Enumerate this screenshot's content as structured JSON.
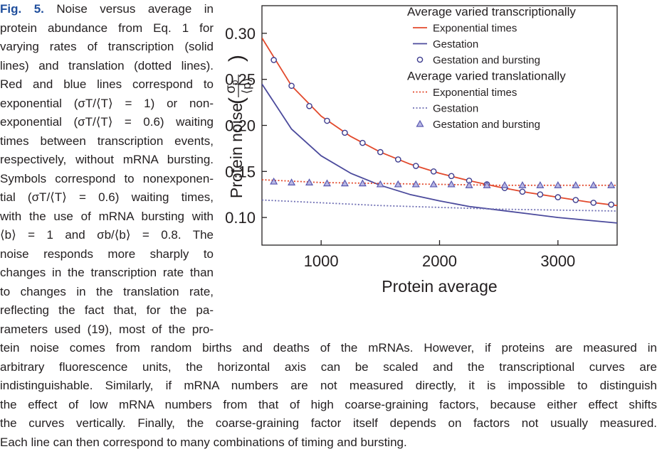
{
  "caption": {
    "label": "Fig. 5.",
    "left_lines": [
      "Noise versus average in",
      "protein abundance from Eq. 1 for",
      "varying rates of transcription (solid",
      "lines) and translation (dotted lines).",
      "Red and blue lines correspond to",
      "exponential (σT/⟨T⟩ = 1) or non-",
      "exponential (σT/⟨T⟩ = 0.6) waiting",
      "times between transcription events,",
      "respectively, without mRNA bursting.",
      "Symbols correspond to nonexponen-",
      "tial (σT/⟨T⟩ = 0.6) waiting times,",
      "with the use of mRNA bursting with",
      "⟨b⟩ = 1 and σb/⟨b⟩ = 0.8. The",
      "noise responds more sharply to",
      "changes in the transcription rate than",
      "to changes in the translation rate,",
      "reflecting the fact that, for the pa-",
      "rameters used (19), most of the pro-"
    ],
    "bottom_lines": [
      "tein noise comes from random births and deaths of the mRNAs. However, if proteins are measured in",
      "arbitrary fluorescence units, the horizontal axis can be scaled and the transcriptional curves are",
      "indistinguishable. Similarly, if mRNA numbers are not measured directly, it is impossible to distinguish",
      "the effect of low mRNA numbers from that of high coarse-graining factors, because either effect shifts",
      "the curves vertically. Finally, the coarse-graining factor itself depends on factors not usually measured.",
      "Each line can then correspond to many combinations of timing and bursting."
    ]
  },
  "chart_data": {
    "type": "line",
    "x_label": "Protein average",
    "y_label": "Protein noise",
    "y_label_fraction": {
      "numerator": "σ",
      "numerator_sub": "p",
      "denominator": "⟨p⟩"
    },
    "xlim": [
      500,
      3500
    ],
    "xticks": [
      1000,
      2000,
      3000
    ],
    "ylim": [
      0.07,
      0.33
    ],
    "yticks": [
      {
        "value": 0.1,
        "label": "0.10"
      },
      {
        "value": 0.15,
        "label": "0.15"
      },
      {
        "value": 0.2,
        "label": "0.20"
      },
      {
        "value": 0.25,
        "label": "0.25"
      },
      {
        "value": 0.3,
        "label": "0.30"
      }
    ],
    "legend_position": "upper right",
    "series_groups": [
      {
        "title": "Average varied transcriptionally",
        "series": [
          {
            "name": "Exponential times",
            "color": "#e2492c",
            "style": "solid",
            "x": [
              500,
              750,
              1000,
              1250,
              1500,
              1750,
              2000,
              2250,
              2500,
              2750,
              3000,
              3250,
              3500
            ],
            "values": [
              0.295,
              0.243,
              0.21,
              0.188,
              0.171,
              0.158,
              0.148,
              0.14,
              0.133,
              0.127,
              0.122,
              0.117,
              0.113
            ]
          },
          {
            "name": "Gestation",
            "color": "#4b4a9c",
            "style": "solid",
            "x": [
              500,
              750,
              1000,
              1250,
              1500,
              1750,
              2000,
              2250,
              2500,
              2750,
              3000,
              3250,
              3500
            ],
            "values": [
              0.245,
              0.196,
              0.167,
              0.148,
              0.135,
              0.125,
              0.118,
              0.112,
              0.108,
              0.104,
              0.1,
              0.097,
              0.094
            ]
          },
          {
            "name": "Gestation and bursting",
            "color": "#3d3c8e",
            "style": "markers",
            "marker": "circle",
            "x": [
              600,
              750,
              900,
              1050,
              1200,
              1350,
              1500,
              1650,
              1800,
              1950,
              2100,
              2250,
              2400,
              2550,
              2700,
              2850,
              3000,
              3150,
              3300,
              3450
            ],
            "values": [
              0.271,
              0.243,
              0.221,
              0.205,
              0.192,
              0.181,
              0.171,
              0.163,
              0.156,
              0.15,
              0.145,
              0.14,
              0.136,
              0.132,
              0.128,
              0.125,
              0.122,
              0.119,
              0.116,
              0.114
            ]
          }
        ]
      },
      {
        "title": "Average varied translationally",
        "series": [
          {
            "name": "Exponential times",
            "color": "#e2492c",
            "style": "dotted",
            "x": [
              500,
              1000,
              1500,
              2000,
              2500,
              3000,
              3500
            ],
            "values": [
              0.141,
              0.138,
              0.137,
              0.136,
              0.135,
              0.135,
              0.135
            ]
          },
          {
            "name": "Gestation",
            "color": "#7070b4",
            "style": "dotted",
            "x": [
              500,
              1000,
              1500,
              2000,
              2500,
              3000,
              3500
            ],
            "values": [
              0.119,
              0.116,
              0.113,
              0.111,
              0.109,
              0.108,
              0.107
            ]
          },
          {
            "name": "Gestation and bursting",
            "color": "#5a59b0",
            "style": "markers",
            "marker": "triangle",
            "x": [
              600,
              750,
              900,
              1050,
              1200,
              1350,
              1500,
              1650,
              1800,
              1950,
              2100,
              2250,
              2400,
              2550,
              2700,
              2850,
              3000,
              3150,
              3300,
              3450
            ],
            "values": [
              0.139,
              0.138,
              0.138,
              0.137,
              0.137,
              0.137,
              0.136,
              0.136,
              0.136,
              0.136,
              0.136,
              0.135,
              0.135,
              0.135,
              0.135,
              0.135,
              0.135,
              0.135,
              0.135,
              0.135
            ]
          }
        ]
      }
    ]
  }
}
